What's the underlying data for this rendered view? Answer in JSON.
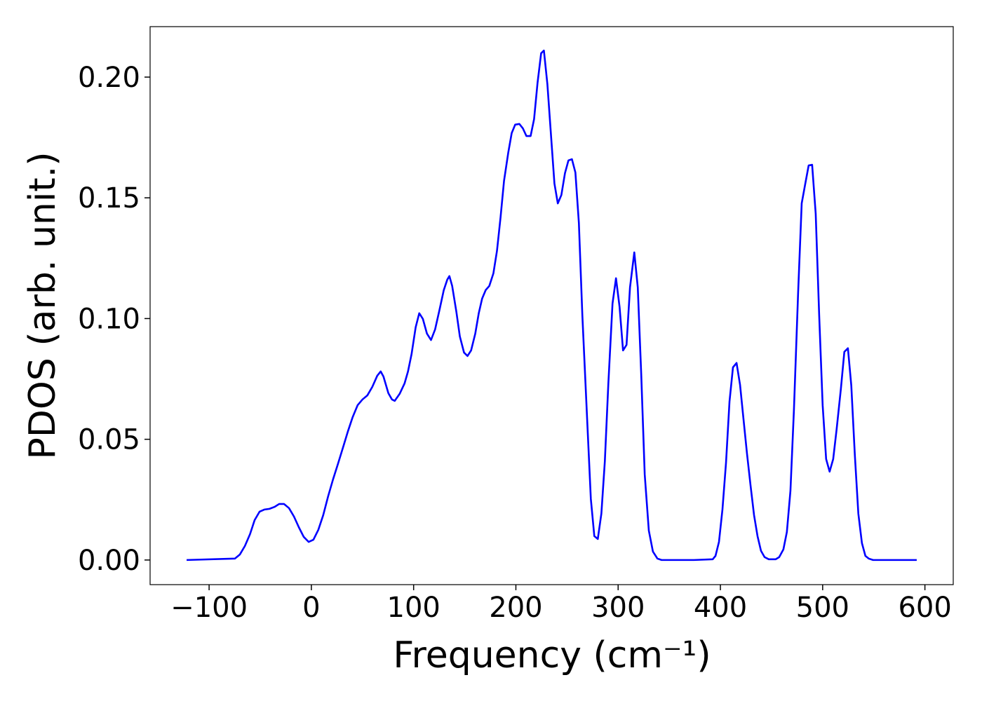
{
  "chart_data": {
    "type": "line",
    "xlabel": "Frequency (cm⁻¹)",
    "ylabel": "PDOS (arb. unit.)",
    "color": "#0000ff",
    "x": [
      -122,
      -74.7,
      -69.9,
      -65,
      -60,
      -55.5,
      -50.7,
      -46,
      -41,
      -36,
      -31.5,
      -26.7,
      -21.9,
      -17,
      -12.3,
      -7.5,
      -2.7,
      2,
      6.8,
      11.6,
      16.4,
      21.2,
      26,
      30.8,
      35.6,
      40.4,
      45.2,
      50,
      54.8,
      59.6,
      64.4,
      67.8,
      70.5,
      75.3,
      78.8,
      81.5,
      86.3,
      91.1,
      94.5,
      98,
      102,
      105.5,
      109,
      113,
      117,
      121,
      125.3,
      129.5,
      132.9,
      135,
      137.7,
      141.8,
      145.2,
      149.3,
      152.7,
      156.2,
      160.3,
      163.7,
      167,
      170.5,
      174,
      178,
      181.5,
      185,
      188.4,
      192.5,
      195.9,
      199.3,
      203.4,
      206.8,
      210.3,
      214.4,
      217.8,
      221.2,
      224.7,
      227.4,
      230.8,
      234.2,
      237.7,
      241,
      244.5,
      248,
      251.4,
      254.8,
      258.2,
      261.6,
      265,
      269.9,
      273.3,
      276.7,
      280.1,
      283.6,
      287,
      290.4,
      294.5,
      297.9,
      301.4,
      304.8,
      308.2,
      311.6,
      315.8,
      319.2,
      322.6,
      326,
      330,
      334,
      338.4,
      342.5,
      374,
      392.5,
      395.2,
      398.6,
      402,
      405.5,
      408.9,
      412.3,
      415.8,
      419.2,
      422.6,
      426,
      429.5,
      432.9,
      436.3,
      439.7,
      443.2,
      447.3,
      454,
      457.5,
      461.6,
      465,
      468.5,
      471.9,
      476,
      479.5,
      482.9,
      486.3,
      489.7,
      493.2,
      496.6,
      500,
      503.4,
      506.8,
      510.3,
      513.7,
      517.8,
      521.2,
      524.7,
      528,
      531.5,
      534.9,
      538.4,
      541.8,
      545,
      549.3,
      592
    ],
    "values": [
      0,
      0.0006,
      0.0023,
      0.0058,
      0.0107,
      0.0165,
      0.02,
      0.0209,
      0.0212,
      0.022,
      0.0232,
      0.0232,
      0.0215,
      0.018,
      0.0136,
      0.0096,
      0.0075,
      0.0084,
      0.0125,
      0.0186,
      0.0264,
      0.0334,
      0.0398,
      0.0464,
      0.0531,
      0.0592,
      0.0641,
      0.0665,
      0.0682,
      0.0717,
      0.0763,
      0.0781,
      0.076,
      0.0691,
      0.0665,
      0.0659,
      0.0688,
      0.0731,
      0.0781,
      0.0853,
      0.0964,
      0.1022,
      0.0999,
      0.0938,
      0.0911,
      0.0955,
      0.1036,
      0.1118,
      0.1161,
      0.1176,
      0.1135,
      0.1028,
      0.0926,
      0.0859,
      0.0845,
      0.0868,
      0.0938,
      0.1022,
      0.1083,
      0.1118,
      0.1135,
      0.1187,
      0.128,
      0.1419,
      0.157,
      0.1686,
      0.1768,
      0.1803,
      0.1806,
      0.1788,
      0.1756,
      0.1756,
      0.1826,
      0.1977,
      0.2099,
      0.211,
      0.1971,
      0.1768,
      0.1559,
      0.1477,
      0.1512,
      0.1602,
      0.1655,
      0.166,
      0.1605,
      0.1396,
      0.1013,
      0.0563,
      0.0253,
      0.0099,
      0.0087,
      0.0192,
      0.0409,
      0.0729,
      0.1062,
      0.1167,
      0.1048,
      0.0868,
      0.0891,
      0.1129,
      0.1274,
      0.1129,
      0.0766,
      0.0354,
      0.0122,
      0.0035,
      0.0006,
      0,
      0,
      0.0003,
      0.0017,
      0.0075,
      0.0209,
      0.0403,
      0.0656,
      0.0798,
      0.0816,
      0.0726,
      0.0583,
      0.0441,
      0.0308,
      0.0186,
      0.0099,
      0.0038,
      0.0012,
      0.0003,
      0.0003,
      0.0012,
      0.0044,
      0.0116,
      0.0287,
      0.0621,
      0.1106,
      0.1477,
      0.1556,
      0.1634,
      0.1637,
      0.1434,
      0.1013,
      0.0641,
      0.0418,
      0.0366,
      0.0418,
      0.0543,
      0.0708,
      0.0862,
      0.0877,
      0.0723,
      0.0433,
      0.0192,
      0.007,
      0.0017,
      0.0006,
      0,
      0
    ],
    "xlim": [
      -157.7,
      627.7
    ],
    "xticks": [
      {
        "value": -100,
        "label": "−100"
      },
      0,
      100,
      200,
      300,
      400,
      500,
      600
    ],
    "ylim": [
      -0.0102,
      0.2209
    ],
    "yticks": [
      {
        "value": 0,
        "label": "0.00"
      },
      {
        "value": 0.05,
        "label": "0.05"
      },
      {
        "value": 0.1,
        "label": "0.10"
      },
      {
        "value": 0.15,
        "label": "0.15"
      },
      {
        "value": 0.2,
        "label": "0.20"
      }
    ],
    "grid": false
  }
}
